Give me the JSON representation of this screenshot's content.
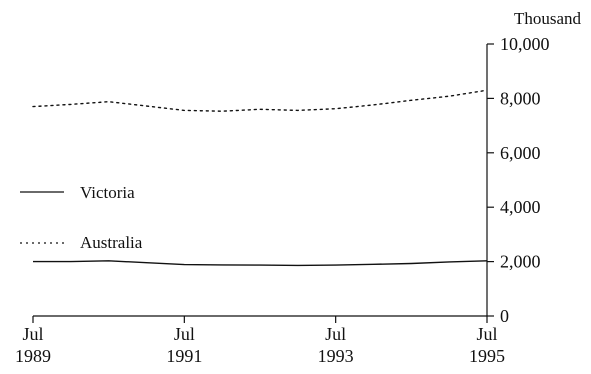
{
  "chart_data": {
    "type": "line",
    "title": "",
    "y_unit_label": "Thousand",
    "ylim": [
      0,
      10000
    ],
    "y_ticks": [
      0,
      2000,
      4000,
      6000,
      8000,
      10000
    ],
    "y_tick_labels": [
      "0",
      "2,000",
      "4,000",
      "6,000",
      "8,000",
      "10,000"
    ],
    "x_ticks": [
      {
        "date": "1989-07",
        "line1": "Jul",
        "line2": "1989"
      },
      {
        "date": "1991-07",
        "line1": "Jul",
        "line2": "1991"
      },
      {
        "date": "1993-07",
        "line1": "Jul",
        "line2": "1993"
      },
      {
        "date": "1995-07",
        "line1": "Jul",
        "line2": "1995"
      }
    ],
    "xlim": [
      "1989-07",
      "1995-07"
    ],
    "legend_position": "left",
    "series": [
      {
        "name": "Victoria",
        "style": "solid",
        "color": "#111111",
        "points": [
          {
            "x": "1989-07",
            "y": 2000
          },
          {
            "x": "1990-01",
            "y": 2000
          },
          {
            "x": "1990-07",
            "y": 2030
          },
          {
            "x": "1991-01",
            "y": 1960
          },
          {
            "x": "1991-07",
            "y": 1890
          },
          {
            "x": "1992-01",
            "y": 1880
          },
          {
            "x": "1992-07",
            "y": 1870
          },
          {
            "x": "1993-01",
            "y": 1860
          },
          {
            "x": "1993-07",
            "y": 1870
          },
          {
            "x": "1994-01",
            "y": 1900
          },
          {
            "x": "1994-07",
            "y": 1930
          },
          {
            "x": "1995-01",
            "y": 1990
          },
          {
            "x": "1995-07",
            "y": 2030
          }
        ]
      },
      {
        "name": "Australia",
        "style": "dotted",
        "color": "#111111",
        "points": [
          {
            "x": "1989-07",
            "y": 7700
          },
          {
            "x": "1990-01",
            "y": 7780
          },
          {
            "x": "1990-07",
            "y": 7880
          },
          {
            "x": "1991-01",
            "y": 7720
          },
          {
            "x": "1991-07",
            "y": 7560
          },
          {
            "x": "1992-01",
            "y": 7530
          },
          {
            "x": "1992-07",
            "y": 7600
          },
          {
            "x": "1993-01",
            "y": 7560
          },
          {
            "x": "1993-07",
            "y": 7620
          },
          {
            "x": "1994-01",
            "y": 7760
          },
          {
            "x": "1994-07",
            "y": 7930
          },
          {
            "x": "1995-01",
            "y": 8080
          },
          {
            "x": "1995-07",
            "y": 8300
          }
        ]
      }
    ]
  }
}
